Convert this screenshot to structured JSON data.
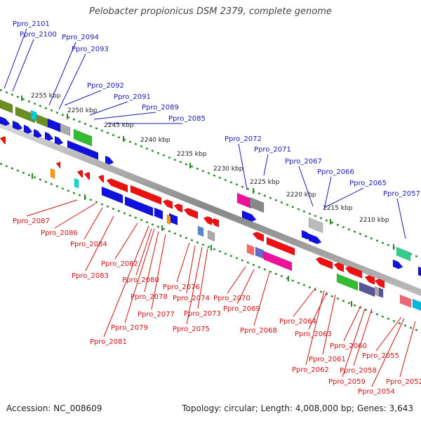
{
  "title": "Pelobacter propionicus DSM 2379, complete genome",
  "accession": "Accession: NC_008609",
  "summary": "Topology: circular; Length: 4,008,000 bp; Genes: 3,643",
  "colors": {
    "forward_strand": "#1111dd",
    "reverse_strand": "#ee1111",
    "ruler_dots": "#2a8a2a",
    "backbone": "#999999"
  },
  "scale_labels": [
    "2255 kbp",
    "2250 kbp",
    "2245 kbp",
    "2240 kbp",
    "2235 kbp",
    "2230 kbp",
    "2225 kbp",
    "2220 kbp",
    "2215 kbp",
    "2210 kbp"
  ],
  "top_genes": [
    "Ppro_2101",
    "Ppro_2100",
    "Ppro_2094",
    "Ppro_2093",
    "Ppro_2092",
    "Ppro_2091",
    "Ppro_2089",
    "Ppro_2085",
    "Ppro_2072",
    "Ppro_2071",
    "Ppro_2067",
    "Ppro_2066",
    "Ppro_2065",
    "Ppro_2057"
  ],
  "bottom_genes": [
    "Ppro_2087",
    "Ppro_2086",
    "Ppro_2084",
    "Ppro_2083",
    "Ppro_2082",
    "Ppro_2080",
    "Ppro_2078",
    "Ppro_2077",
    "Ppro_2079",
    "Ppro_2081",
    "Ppro_2076",
    "Ppro_2074",
    "Ppro_2075",
    "Ppro_2073",
    "Ppro_2070",
    "Ppro_2069",
    "Ppro_2068",
    "Ppro_2064",
    "Ppro_2063",
    "Ppro_2061",
    "Ppro_2062",
    "Ppro_2060",
    "Ppro_2059",
    "Ppro_2058",
    "Ppro_2055",
    "Ppro_2054",
    "Ppro_2052"
  ]
}
